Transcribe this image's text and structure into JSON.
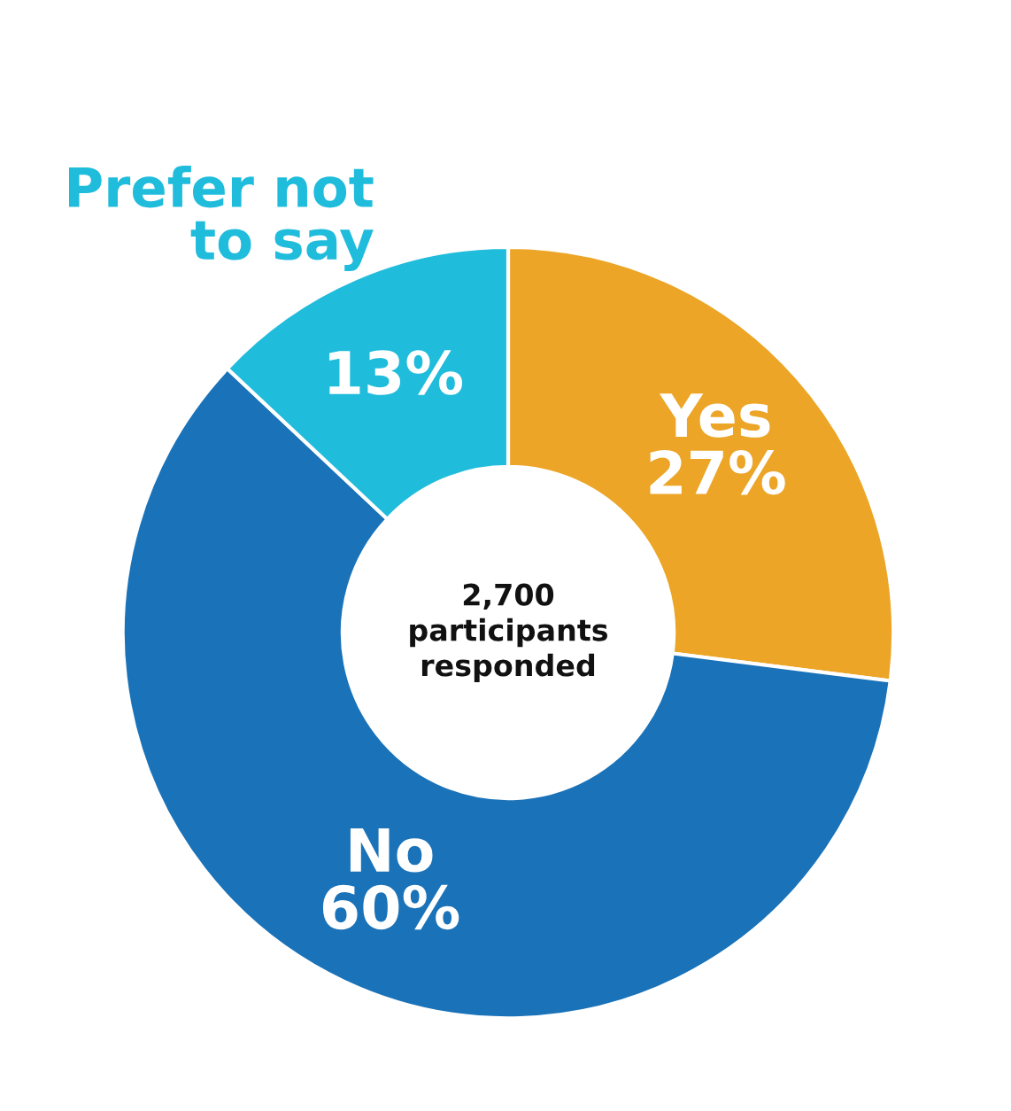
{
  "chart_data": {
    "type": "donut",
    "categories": [
      "Yes",
      "No",
      "Prefer not\nto say"
    ],
    "values": [
      27,
      60,
      13
    ],
    "value_labels": [
      "27%",
      "60%",
      "13%"
    ],
    "colors": [
      "#eca526",
      "#1a72b8",
      "#1fbcdc"
    ],
    "annotations": [
      "2,700\nparticipants\nresponded"
    ]
  }
}
